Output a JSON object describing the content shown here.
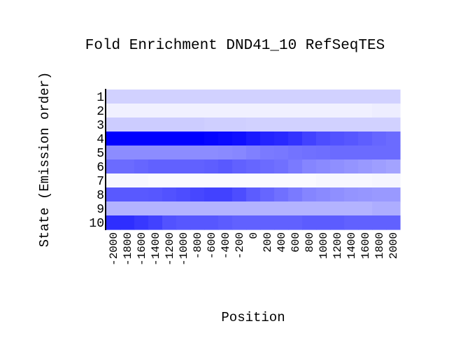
{
  "chart_data": {
    "type": "heatmap",
    "title": "Fold Enrichment DND41_10 RefSeqTES",
    "xlabel": "Position",
    "ylabel": "State (Emission order)",
    "y_categories": [
      "1",
      "2",
      "3",
      "4",
      "5",
      "6",
      "7",
      "8",
      "9",
      "10"
    ],
    "x_categories": [
      "-2000",
      "-1800",
      "-1600",
      "-1400",
      "-1200",
      "-1000",
      "-800",
      "-600",
      "-400",
      "-200",
      "0",
      "200",
      "400",
      "600",
      "800",
      "1000",
      "1200",
      "1400",
      "1600",
      "1800",
      "2000"
    ],
    "color_low": "#ffffff",
    "color_high": "#0000ff",
    "values": [
      [
        0.18,
        0.18,
        0.18,
        0.18,
        0.18,
        0.18,
        0.18,
        0.18,
        0.18,
        0.18,
        0.18,
        0.18,
        0.18,
        0.18,
        0.18,
        0.18,
        0.18,
        0.18,
        0.18,
        0.18,
        0.18
      ],
      [
        0.06,
        0.06,
        0.06,
        0.06,
        0.06,
        0.06,
        0.06,
        0.06,
        0.06,
        0.06,
        0.06,
        0.06,
        0.06,
        0.06,
        0.06,
        0.06,
        0.06,
        0.06,
        0.06,
        0.07,
        0.07
      ],
      [
        0.2,
        0.2,
        0.2,
        0.2,
        0.2,
        0.2,
        0.2,
        0.19,
        0.19,
        0.19,
        0.18,
        0.18,
        0.18,
        0.18,
        0.18,
        0.18,
        0.18,
        0.18,
        0.18,
        0.18,
        0.18
      ],
      [
        1.0,
        1.0,
        1.0,
        1.0,
        1.0,
        1.0,
        1.0,
        0.98,
        0.96,
        0.94,
        0.9,
        0.86,
        0.84,
        0.8,
        0.74,
        0.7,
        0.68,
        0.66,
        0.63,
        0.6,
        0.58
      ],
      [
        0.45,
        0.45,
        0.45,
        0.45,
        0.45,
        0.45,
        0.45,
        0.45,
        0.46,
        0.47,
        0.5,
        0.52,
        0.53,
        0.55,
        0.56,
        0.57,
        0.58,
        0.58,
        0.58,
        0.58,
        0.58
      ],
      [
        0.58,
        0.58,
        0.6,
        0.62,
        0.62,
        0.62,
        0.62,
        0.63,
        0.65,
        0.62,
        0.6,
        0.58,
        0.56,
        0.52,
        0.48,
        0.46,
        0.44,
        0.42,
        0.4,
        0.38,
        0.36
      ],
      [
        0.03,
        0.03,
        0.03,
        0.02,
        0.02,
        0.02,
        0.02,
        0.02,
        0.02,
        0.02,
        0.02,
        0.02,
        0.02,
        0.02,
        0.02,
        0.03,
        0.03,
        0.03,
        0.03,
        0.04,
        0.04
      ],
      [
        0.65,
        0.65,
        0.65,
        0.66,
        0.68,
        0.7,
        0.72,
        0.74,
        0.74,
        0.7,
        0.64,
        0.6,
        0.56,
        0.52,
        0.48,
        0.46,
        0.44,
        0.42,
        0.41,
        0.4,
        0.4
      ],
      [
        0.3,
        0.3,
        0.3,
        0.3,
        0.3,
        0.3,
        0.3,
        0.3,
        0.3,
        0.3,
        0.3,
        0.3,
        0.3,
        0.3,
        0.3,
        0.3,
        0.3,
        0.3,
        0.3,
        0.32,
        0.32
      ],
      [
        0.82,
        0.82,
        0.78,
        0.74,
        0.68,
        0.66,
        0.66,
        0.66,
        0.64,
        0.62,
        0.62,
        0.62,
        0.62,
        0.62,
        0.64,
        0.64,
        0.64,
        0.62,
        0.62,
        0.62,
        0.62
      ]
    ]
  }
}
